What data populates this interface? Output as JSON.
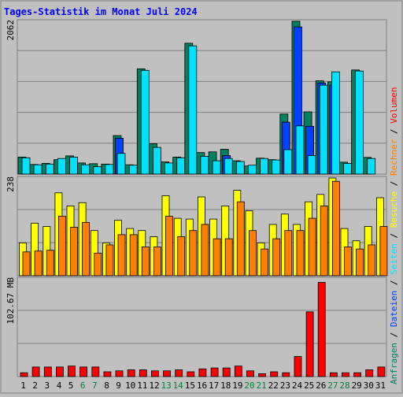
{
  "title": "Tages-Statistik im Monat Juli 2024",
  "colors": {
    "background": "#C0C0C0",
    "title": "#0000FF",
    "anfragen": "#00805F",
    "dateien": "#0040FF",
    "seiten": "#00E0FF",
    "besuche": "#FFFF00",
    "rechner": "#FF8000",
    "volumen": "#FF0000",
    "weekend": "#008040"
  },
  "chart_data": [
    {
      "type": "bar",
      "title": "Tages-Statistik im Monat Juli 2024",
      "axis_label": "2062",
      "ylim": [
        0,
        2062
      ],
      "categories": [
        "1",
        "2",
        "3",
        "4",
        "5",
        "6",
        "7",
        "8",
        "9",
        "10",
        "11",
        "12",
        "13",
        "14",
        "15",
        "16",
        "17",
        "18",
        "19",
        "20",
        "21",
        "22",
        "23",
        "24",
        "25",
        "26",
        "27",
        "28",
        "29",
        "30",
        "31"
      ],
      "weekend_days": [
        "6",
        "7",
        "13",
        "14",
        "20",
        "21",
        "27",
        "28"
      ],
      "series": [
        {
          "name": "Anfragen",
          "color": "#00805F",
          "values": [
            230,
            130,
            145,
            195,
            245,
            150,
            140,
            135,
            520,
            125,
            1420,
            410,
            165,
            230,
            1765,
            290,
            300,
            335,
            180,
            110,
            215,
            195,
            810,
            2062,
            840,
            1260,
            1245,
            160,
            1405,
            225,
            0
          ]
        },
        {
          "name": "Dateien",
          "color": "#0040FF",
          "values": [
            0,
            0,
            0,
            0,
            0,
            0,
            0,
            0,
            485,
            0,
            0,
            0,
            0,
            0,
            0,
            0,
            0,
            250,
            0,
            0,
            0,
            0,
            700,
            1985,
            645,
            1230,
            1200,
            0,
            0,
            0,
            0
          ]
        },
        {
          "name": "Seiten",
          "color": "#00E0FF",
          "values": [
            220,
            125,
            135,
            210,
            230,
            125,
            100,
            130,
            280,
            120,
            1400,
            360,
            150,
            220,
            1730,
            240,
            180,
            210,
            170,
            120,
            210,
            190,
            330,
            650,
            250,
            1200,
            1380,
            145,
            1390,
            210,
            0
          ]
        }
      ]
    },
    {
      "type": "bar",
      "axis_label": "238",
      "ylim": [
        0,
        238
      ],
      "categories": [
        "1",
        "2",
        "3",
        "4",
        "5",
        "6",
        "7",
        "8",
        "9",
        "10",
        "11",
        "12",
        "13",
        "14",
        "15",
        "16",
        "17",
        "18",
        "19",
        "20",
        "21",
        "22",
        "23",
        "24",
        "25",
        "26",
        "27",
        "28",
        "29",
        "30",
        "31"
      ],
      "series": [
        {
          "name": "Besuche",
          "color": "#FFFF00",
          "values": [
            80,
            128,
            120,
            202,
            170,
            178,
            110,
            80,
            135,
            115,
            110,
            95,
            195,
            140,
            138,
            192,
            138,
            170,
            208,
            158,
            80,
            125,
            150,
            125,
            180,
            198,
            238,
            115,
            85,
            120,
            190
          ]
        },
        {
          "name": "Rechner",
          "color": "#FF8000",
          "values": [
            58,
            60,
            62,
            145,
            118,
            130,
            55,
            75,
            100,
            100,
            70,
            70,
            145,
            95,
            110,
            125,
            90,
            90,
            180,
            110,
            65,
            90,
            110,
            110,
            140,
            170,
            230,
            70,
            65,
            75,
            120
          ]
        }
      ]
    },
    {
      "type": "bar",
      "axis_label": "102.67 MB",
      "ylim": [
        0,
        102.67
      ],
      "categories": [
        "1",
        "2",
        "3",
        "4",
        "5",
        "6",
        "7",
        "8",
        "9",
        "10",
        "11",
        "12",
        "13",
        "14",
        "15",
        "16",
        "17",
        "18",
        "19",
        "20",
        "21",
        "22",
        "23",
        "24",
        "25",
        "26",
        "27",
        "28",
        "29",
        "30",
        "31"
      ],
      "series": [
        {
          "name": "Volumen",
          "color": "#FF0000",
          "values": [
            4,
            10,
            10,
            10,
            11,
            10,
            10,
            5,
            6,
            7,
            7,
            6,
            6,
            7,
            5,
            8,
            9,
            9,
            11,
            6,
            3,
            5,
            4,
            21,
            68,
            99,
            4,
            4,
            4,
            7,
            10
          ]
        }
      ]
    }
  ],
  "legend_right": [
    {
      "text": "Anfragen",
      "color": "#00805F"
    },
    {
      "sep": " / "
    },
    {
      "text": "Dateien",
      "color": "#0040FF"
    },
    {
      "sep": " / "
    },
    {
      "text": "Seiten",
      "color": "#00E0FF"
    },
    {
      "sep": " / "
    },
    {
      "text": "Besuche",
      "color": "#FFFF00"
    },
    {
      "sep": " / "
    },
    {
      "text": "Rechner",
      "color": "#FF8000"
    },
    {
      "sep": " / "
    },
    {
      "text": "Volumen",
      "color": "#FF0000"
    }
  ]
}
